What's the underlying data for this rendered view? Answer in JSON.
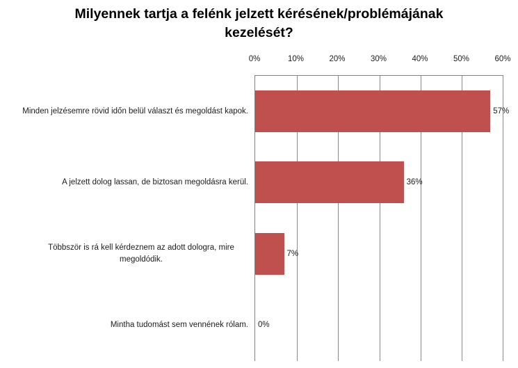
{
  "title": {
    "line1": "Milyennek tartja a felénk jelzett kérésének/problémájának",
    "line2": "kezelését?"
  },
  "chart_data": {
    "type": "bar",
    "orientation": "horizontal",
    "title": "Milyennek tartja a felénk jelzett kérésének/problémájának kezelését?",
    "categories": [
      "Minden jelzésemre rövid időn belül választ és megoldást kapok.",
      "A jelzett dolog lassan, de biztosan megoldásra kerül.",
      "Többször is rá kell kérdeznem az adott dologra, mire megoldódik.",
      "Mintha tudomást sem vennének rólam."
    ],
    "values": [
      57,
      36,
      7,
      0
    ],
    "value_labels": [
      "57%",
      "36%",
      "7%",
      "0%"
    ],
    "x_ticks": [
      "0%",
      "10%",
      "20%",
      "30%",
      "40%",
      "50%",
      "60%"
    ],
    "xlim": [
      0,
      60
    ],
    "axis_position": "top",
    "grid": true,
    "legend": "none",
    "bar_color": "#C0504D",
    "gridline_color": "#8A8A8A",
    "background_color": "#FFFFFF"
  }
}
